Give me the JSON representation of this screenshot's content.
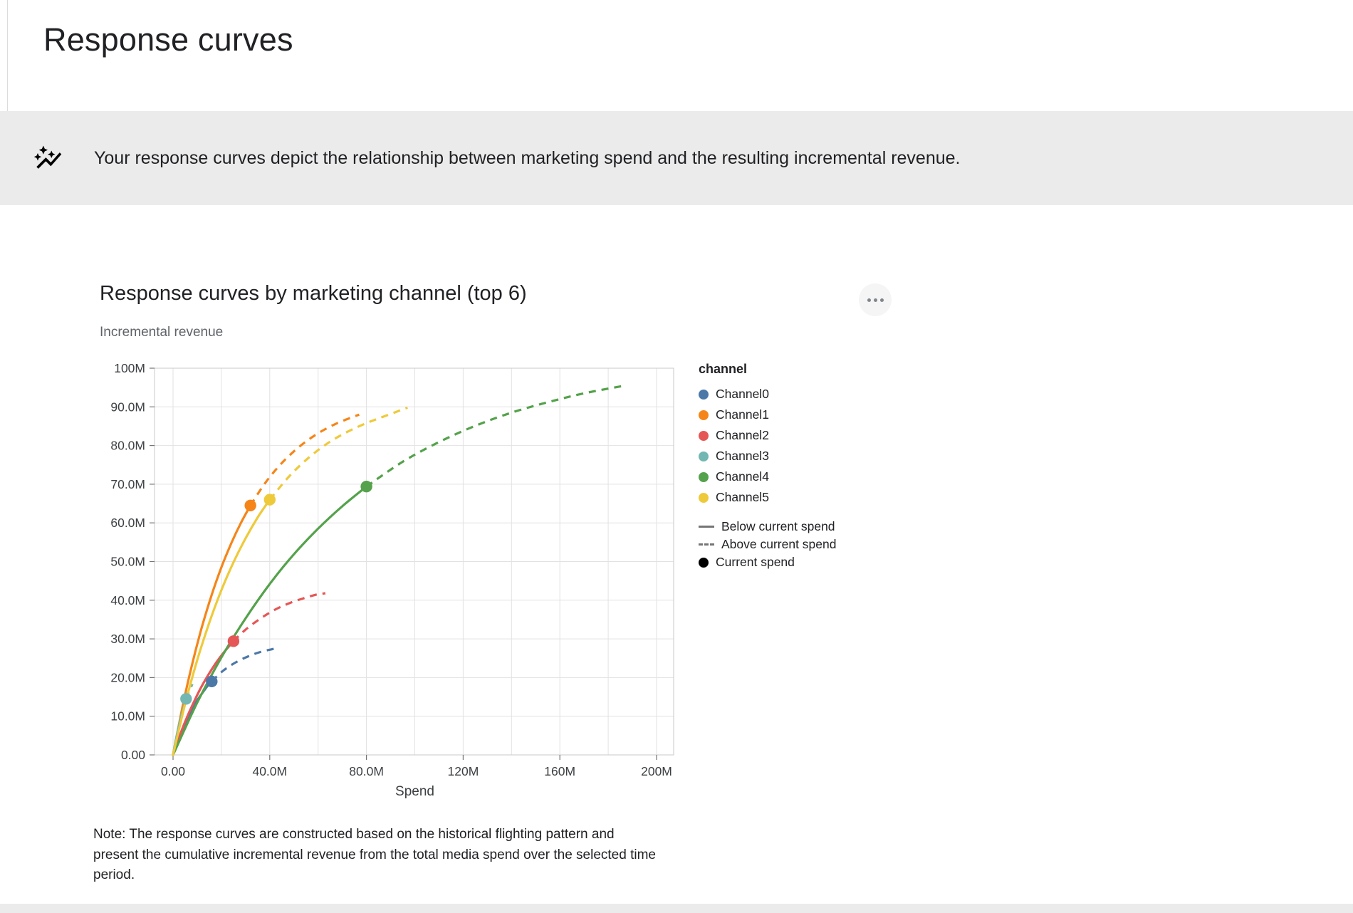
{
  "page": {
    "title": "Response curves"
  },
  "banner": {
    "icon": "insights-icon",
    "text": "Your response curves depict the relationship between marketing spend and the resulting incremental revenue."
  },
  "chart": {
    "title": "Response curves by marketing channel (top 6)",
    "y_axis_title": "Incremental revenue",
    "x_axis_title": "Spend",
    "note": "Note: The response curves are constructed based on the historical flighting pattern and present the cumulative incremental revenue from the total media spend over the selected time period."
  },
  "chart_data": {
    "type": "line",
    "title": "Response curves by marketing channel (top 6)",
    "xlabel": "Spend",
    "ylabel": "Incremental revenue",
    "units": "millions",
    "xlim": [
      0,
      200
    ],
    "ylim": [
      0,
      100
    ],
    "x_grid_step": 20,
    "y_grid_step": 10,
    "grid": true,
    "x_ticks": [
      {
        "v": 0,
        "label": "0.00"
      },
      {
        "v": 40,
        "label": "40.0M"
      },
      {
        "v": 80,
        "label": "80.0M"
      },
      {
        "v": 120,
        "label": "120M"
      },
      {
        "v": 160,
        "label": "160M"
      },
      {
        "v": 200,
        "label": "200M"
      }
    ],
    "y_ticks": [
      {
        "v": 0,
        "label": "0.00"
      },
      {
        "v": 10,
        "label": "10.0M"
      },
      {
        "v": 20,
        "label": "20.0M"
      },
      {
        "v": 30,
        "label": "30.0M"
      },
      {
        "v": 40,
        "label": "40.0M"
      },
      {
        "v": 50,
        "label": "50.0M"
      },
      {
        "v": 60,
        "label": "60.0M"
      },
      {
        "v": 70,
        "label": "70.0M"
      },
      {
        "v": 80,
        "label": "80.0M"
      },
      {
        "v": 90,
        "label": "90.0M"
      },
      {
        "v": 100,
        "label": "100M"
      }
    ],
    "legend": {
      "title": "channel",
      "position": "right",
      "style_color": "#757575",
      "style_entries": [
        {
          "style": "solid",
          "label": "Below current spend"
        },
        {
          "style": "dashed",
          "label": "Above current spend"
        },
        {
          "style": "dot",
          "label": "Current spend"
        }
      ]
    },
    "series": [
      {
        "name": "Channel0",
        "color": "#4c78a8",
        "current_spend": [
          16,
          19.0
        ],
        "below_current": [
          [
            0,
            0
          ],
          [
            2,
            3.6
          ],
          [
            4,
            6.7
          ],
          [
            6,
            9.5
          ],
          [
            8,
            11.9
          ],
          [
            10,
            14.1
          ],
          [
            12,
            15.9
          ],
          [
            14,
            17.6
          ],
          [
            16,
            19.0
          ]
        ],
        "above_current": [
          [
            16,
            19.0
          ],
          [
            20,
            21.4
          ],
          [
            24,
            23.2
          ],
          [
            28,
            24.6
          ],
          [
            32,
            25.7
          ],
          [
            36,
            26.6
          ],
          [
            40,
            27.2
          ],
          [
            43,
            27.6
          ]
        ]
      },
      {
        "name": "Channel1",
        "color": "#f58518",
        "current_spend": [
          32,
          64.5
        ],
        "below_current": [
          [
            0,
            0
          ],
          [
            4,
            12.7
          ],
          [
            8,
            23.7
          ],
          [
            12,
            33.2
          ],
          [
            16,
            41.4
          ],
          [
            20,
            48.5
          ],
          [
            24,
            54.6
          ],
          [
            28,
            59.9
          ],
          [
            32,
            64.5
          ]
        ],
        "above_current": [
          [
            32,
            64.5
          ],
          [
            38,
            70.2
          ],
          [
            44,
            74.8
          ],
          [
            50,
            78.5
          ],
          [
            56,
            81.5
          ],
          [
            62,
            83.9
          ],
          [
            68,
            85.8
          ],
          [
            74,
            87.3
          ],
          [
            77,
            88.0
          ]
        ]
      },
      {
        "name": "Channel2",
        "color": "#e45756",
        "current_spend": [
          25,
          29.4
        ],
        "below_current": [
          [
            0,
            0
          ],
          [
            3,
            5.4
          ],
          [
            6,
            10.1
          ],
          [
            9,
            14.2
          ],
          [
            12,
            17.9
          ],
          [
            15,
            21.1
          ],
          [
            18,
            24.0
          ],
          [
            21,
            26.5
          ],
          [
            25,
            29.4
          ]
        ],
        "above_current": [
          [
            25,
            29.4
          ],
          [
            30,
            32.4
          ],
          [
            36,
            35.2
          ],
          [
            42,
            37.5
          ],
          [
            48,
            39.2
          ],
          [
            54,
            40.5
          ],
          [
            59,
            41.4
          ],
          [
            63,
            41.8
          ]
        ]
      },
      {
        "name": "Channel3",
        "color": "#72b7b2",
        "current_spend": [
          5.4,
          14.5
        ],
        "below_current": [
          [
            0,
            0
          ],
          [
            1,
            3.4
          ],
          [
            2,
            6.4
          ],
          [
            3,
            9.1
          ],
          [
            4,
            11.4
          ],
          [
            5,
            13.5
          ],
          [
            5.4,
            14.5
          ]
        ],
        "above_current": [
          [
            5.4,
            14.5
          ],
          [
            6.5,
            16.2
          ],
          [
            8,
            18.3
          ]
        ]
      },
      {
        "name": "Channel4",
        "color": "#54a24b",
        "current_spend": [
          80,
          69.4
        ],
        "below_current": [
          [
            0,
            0
          ],
          [
            10,
            13.5
          ],
          [
            20,
            25.2
          ],
          [
            30,
            35.3
          ],
          [
            40,
            44.2
          ],
          [
            50,
            51.9
          ],
          [
            60,
            58.5
          ],
          [
            70,
            64.3
          ],
          [
            80,
            69.4
          ]
        ],
        "above_current": [
          [
            80,
            69.4
          ],
          [
            95,
            75.8
          ],
          [
            110,
            80.9
          ],
          [
            125,
            85.1
          ],
          [
            140,
            88.5
          ],
          [
            155,
            91.2
          ],
          [
            170,
            93.5
          ],
          [
            186,
            95.4
          ]
        ]
      },
      {
        "name": "Channel5",
        "color": "#eeca3b",
        "current_spend": [
          40,
          66.0
        ],
        "below_current": [
          [
            0,
            0
          ],
          [
            5,
            13.2
          ],
          [
            10,
            24.5
          ],
          [
            15,
            34.2
          ],
          [
            20,
            42.6
          ],
          [
            25,
            49.8
          ],
          [
            30,
            56.0
          ],
          [
            35,
            61.4
          ],
          [
            40,
            66.0
          ]
        ],
        "above_current": [
          [
            40,
            66.0
          ],
          [
            48,
            72.0
          ],
          [
            56,
            76.8
          ],
          [
            64,
            80.6
          ],
          [
            72,
            83.5
          ],
          [
            80,
            85.8
          ],
          [
            88,
            87.7
          ],
          [
            97,
            89.8
          ]
        ]
      }
    ]
  }
}
